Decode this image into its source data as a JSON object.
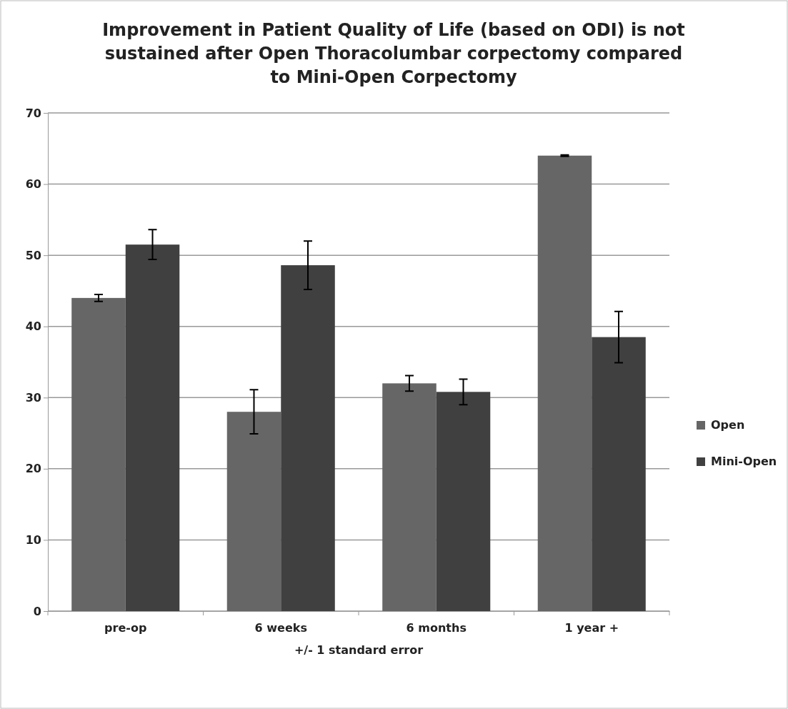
{
  "chart_data": {
    "type": "bar",
    "title": "Improvement in Patient Quality of Life (based on ODI)  is not sustained after Open Thoracolumbar corpectomy compared to Mini-Open  Corpectomy",
    "xlabel": "+/- 1 standard error",
    "categories": [
      "pre-op",
      "6 weeks",
      "6 months",
      "1 year +"
    ],
    "series": [
      {
        "name": "Open",
        "color": "#666666",
        "values": [
          44,
          28,
          32,
          64
        ],
        "errors": [
          0.5,
          3.1,
          1.1,
          0.1
        ]
      },
      {
        "name": "Mini-Open",
        "color": "#404040",
        "values": [
          51.5,
          48.6,
          30.8,
          38.5
        ],
        "errors": [
          2.1,
          3.4,
          1.8,
          3.6
        ]
      }
    ],
    "ylim": [
      0,
      70
    ],
    "yticks": [
      0,
      10,
      20,
      30,
      40,
      50,
      60,
      70
    ],
    "grid": "y",
    "legend": "right"
  }
}
